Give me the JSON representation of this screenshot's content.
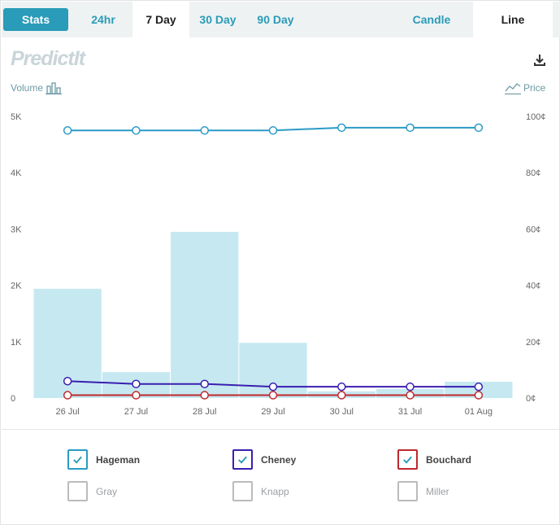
{
  "tabs": {
    "stats": "Stats",
    "ranges": [
      "24hr",
      "7 Day",
      "30 Day",
      "90 Day"
    ],
    "active_range": "7 Day",
    "views": [
      "Candle",
      "Line"
    ],
    "active_view": "Line"
  },
  "logo": {
    "text": "PredictIt"
  },
  "axes": {
    "left_title": "Volume",
    "right_title": "Price"
  },
  "colors": {
    "volume_bar": "#c6e9f1",
    "hageman": "#2a9bc6",
    "cheney": "#3a1fb0",
    "bouchard": "#c0282d",
    "accent": "#2a9bb8"
  },
  "chart_data": {
    "type": "bar",
    "categories": [
      "26 Jul",
      "27 Jul",
      "28 Jul",
      "29 Jul",
      "30 Jul",
      "31 Jul",
      "01 Aug"
    ],
    "volume": {
      "name": "Volume",
      "values": [
        1940,
        460,
        2950,
        980,
        120,
        160,
        290
      ],
      "ylim": [
        0,
        5000
      ],
      "ticks": [
        0,
        1000,
        2000,
        3000,
        4000,
        5000
      ],
      "tick_labels": [
        "0",
        "1K",
        "2K",
        "3K",
        "4K",
        "5K"
      ]
    },
    "price": {
      "ylim": [
        0,
        100
      ],
      "ticks": [
        0,
        20,
        40,
        60,
        80,
        100
      ],
      "tick_labels": [
        "0¢",
        "20¢",
        "40¢",
        "60¢",
        "80¢",
        "100¢"
      ]
    },
    "series": [
      {
        "name": "Hageman",
        "type": "line",
        "values": [
          95,
          95,
          95,
          95,
          96,
          96,
          96
        ]
      },
      {
        "name": "Cheney",
        "type": "line",
        "values": [
          6,
          5,
          5,
          4,
          4,
          4,
          4
        ]
      },
      {
        "name": "Bouchard",
        "type": "line",
        "values": [
          1,
          1,
          1,
          1,
          1,
          1,
          1
        ]
      }
    ]
  },
  "legend": {
    "items": [
      {
        "label": "Hageman",
        "checked": true,
        "color": "#2a9bc6"
      },
      {
        "label": "Cheney",
        "checked": true,
        "color": "#3a1fb0"
      },
      {
        "label": "Bouchard",
        "checked": true,
        "color": "#c0282d"
      },
      {
        "label": "Gray",
        "checked": false,
        "color": "#aaaaaa"
      },
      {
        "label": "Knapp",
        "checked": false,
        "color": "#aaaaaa"
      },
      {
        "label": "Miller",
        "checked": false,
        "color": "#aaaaaa"
      }
    ]
  }
}
